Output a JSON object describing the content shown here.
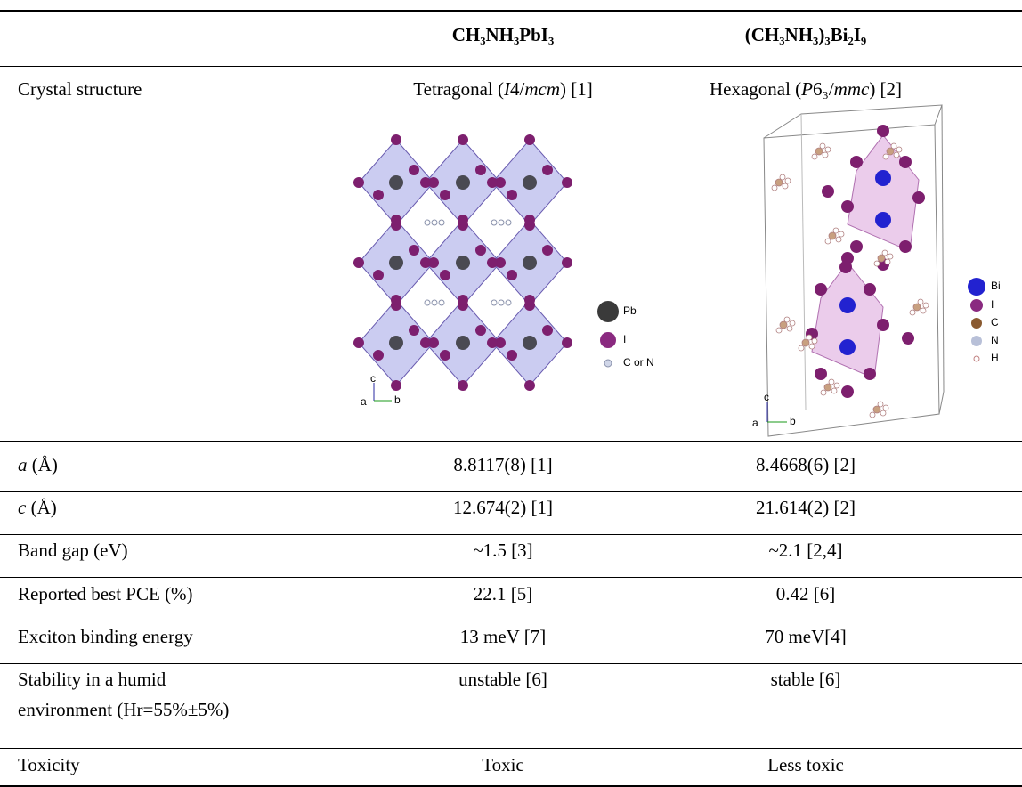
{
  "table": {
    "columns": [
      [
        [
          {
            "text": "CH₃NH₃PbI₃"
          }
        ]
      ],
      [
        [
          {
            "text": "(CH₃NH₃)₃Bi₂I₉"
          }
        ]
      ]
    ],
    "rows": [
      {
        "label": [
          [
            {
              "text": "Crystal structure"
            }
          ]
        ],
        "cells": [
          [
            [
              {
                "text": "Tetragonal ("
              },
              {
                "text": "I",
                "italic": true
              },
              {
                "text": "4/"
              },
              {
                "text": "mcm",
                "italic": true
              },
              {
                "text": ") [1]"
              }
            ]
          ],
          [
            [
              {
                "text": "Hexagonal ("
              },
              {
                "text": "P",
                "italic": true
              },
              {
                "text": "6₃/"
              },
              {
                "text": "mmc",
                "italic": true
              },
              {
                "text": ") [2]"
              }
            ]
          ]
        ]
      },
      {
        "label": [
          [
            {
              "text": "a",
              "italic": true
            },
            {
              "text": " (Å)"
            }
          ]
        ],
        "cells": [
          [
            [
              {
                "text": "8.8117(8) [1]"
              }
            ]
          ],
          [
            [
              {
                "text": "8.4668(6) [2]"
              }
            ]
          ]
        ]
      },
      {
        "label": [
          [
            {
              "text": "c",
              "italic": true
            },
            {
              "text": " (Å)"
            }
          ]
        ],
        "cells": [
          [
            [
              {
                "text": "12.674(2) [1]"
              }
            ]
          ],
          [
            [
              {
                "text": "21.614(2) [2]"
              }
            ]
          ]
        ]
      },
      {
        "label": [
          [
            {
              "text": "Band gap (eV)"
            }
          ]
        ],
        "cells": [
          [
            [
              {
                "text": "~1.5 [3]"
              }
            ]
          ],
          [
            [
              {
                "text": "~2.1 [2,4]"
              }
            ]
          ]
        ]
      },
      {
        "label": [
          [
            {
              "text": "Reported best PCE (%)"
            }
          ]
        ],
        "cells": [
          [
            [
              {
                "text": "22.1 [5]"
              }
            ]
          ],
          [
            [
              {
                "text": "0.42 [6]"
              }
            ]
          ]
        ]
      },
      {
        "label": [
          [
            {
              "text": "Exciton binding energy"
            }
          ]
        ],
        "cells": [
          [
            [
              {
                "text": "13 meV [7]"
              }
            ]
          ],
          [
            [
              {
                "text": "70 meV[4]"
              }
            ]
          ]
        ]
      },
      {
        "label": [
          [
            {
              "text": "Stability in a humid"
            }
          ],
          [
            {
              "text": "environment (Hr=55%±5%)"
            }
          ]
        ],
        "cells": [
          [
            [
              {
                "text": "unstable [6]"
              }
            ]
          ],
          [
            [
              {
                "text": "stable [6]"
              }
            ]
          ]
        ]
      },
      {
        "label": [
          [
            {
              "text": "Toxicity"
            }
          ]
        ],
        "cells": [
          [
            [
              {
                "text": "Toxic"
              }
            ]
          ],
          [
            [
              {
                "text": "Less toxic"
              }
            ]
          ]
        ]
      }
    ]
  },
  "images": [
    {
      "legend": [
        "Pb",
        "I",
        "C or N"
      ],
      "axes": [
        "c",
        "b",
        "a"
      ]
    },
    {
      "legend": [
        "Bi",
        "I",
        "C",
        "N",
        "H"
      ],
      "axes": [
        "c",
        "b",
        "a"
      ]
    }
  ]
}
